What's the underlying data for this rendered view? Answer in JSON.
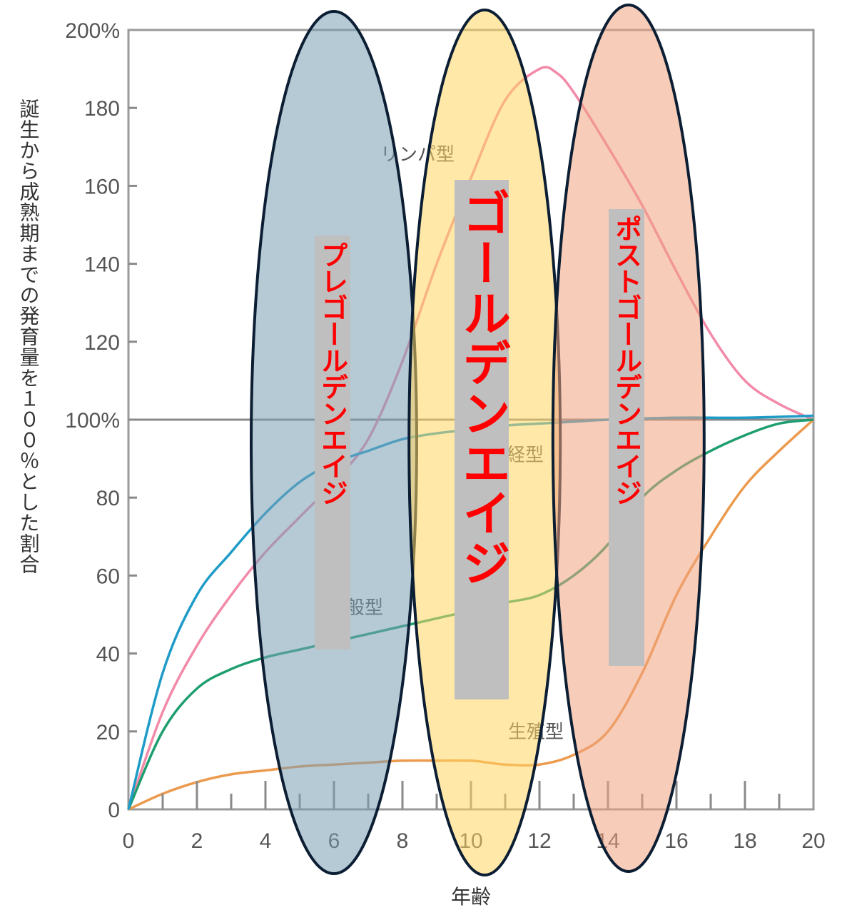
{
  "chart_data": {
    "type": "line",
    "xlabel": "年齢",
    "ylabel": "誕生から成熟期までの発育量を１００％とした割合",
    "xlim": [
      0,
      20
    ],
    "ylim": [
      0,
      200
    ],
    "x_ticks": [
      "0",
      "2",
      "4",
      "6",
      "8",
      "10",
      "12",
      "14",
      "16",
      "18",
      "20"
    ],
    "y_ticks": [
      "0",
      "20",
      "40",
      "60",
      "80",
      "100%",
      "120",
      "140",
      "160",
      "180",
      "200%"
    ],
    "grid": false,
    "reference_line": 100,
    "series": [
      {
        "name": "リンパ型",
        "color": "#f28aa8",
        "x": [
          0,
          1,
          2,
          3,
          4,
          5,
          6,
          7,
          8,
          9,
          10,
          11,
          12,
          12.5,
          13,
          14,
          15,
          16,
          17,
          18,
          19,
          20
        ],
        "y": [
          0,
          25,
          42,
          55,
          66,
          75,
          84,
          95,
          115,
          140,
          162,
          182,
          190,
          189,
          184,
          170,
          155,
          138,
          122,
          110,
          104,
          100
        ]
      },
      {
        "name": "神経型",
        "color": "#1f9bc7",
        "x": [
          0,
          1,
          2,
          3,
          4,
          5,
          6,
          7,
          8,
          9,
          10,
          11,
          12,
          13,
          14,
          16,
          18,
          20
        ],
        "y": [
          0,
          35,
          55,
          66,
          76,
          84,
          89,
          92,
          95,
          96.5,
          97.5,
          98.5,
          99,
          99.5,
          100,
          100.5,
          100.5,
          101
        ]
      },
      {
        "name": "一般型",
        "color": "#1e9e6e",
        "x": [
          0,
          1,
          2,
          3,
          4,
          5,
          6,
          7,
          8,
          9,
          10,
          11,
          12,
          13,
          14,
          15,
          16,
          17,
          18,
          19,
          20
        ],
        "y": [
          0,
          20,
          31,
          36,
          39,
          41,
          43,
          45,
          47,
          49,
          51,
          53,
          55,
          60,
          68,
          80,
          87,
          92,
          96,
          99,
          100
        ]
      },
      {
        "name": "生殖型",
        "color": "#ec9a4e",
        "x": [
          0,
          1,
          2,
          3,
          4,
          5,
          6,
          7,
          8,
          9,
          10,
          10.5,
          11,
          12,
          13,
          14,
          15,
          16,
          17,
          18,
          19,
          20
        ],
        "y": [
          0,
          4,
          7,
          9,
          10,
          11,
          11.5,
          12,
          12.5,
          12.5,
          12.5,
          12,
          11.5,
          11.5,
          14,
          20,
          35,
          55,
          70,
          83,
          92,
          100
        ]
      }
    ],
    "series_label_visible": [
      "リンパ型",
      "経型",
      "般型",
      "生殖型"
    ]
  },
  "stages": [
    {
      "label": "プレゴールデンエイジ",
      "fill": "#7a9fb5",
      "center_x": 6,
      "x_halfwidth": 2.4
    },
    {
      "label": "ゴールデンエイジ",
      "fill": "#ffd560",
      "center_x": 10.4,
      "x_halfwidth": 2.4
    },
    {
      "label": "ポストゴールデンエイジ",
      "fill": "#f0a27e",
      "center_x": 14.6,
      "x_halfwidth": 2.4
    }
  ]
}
